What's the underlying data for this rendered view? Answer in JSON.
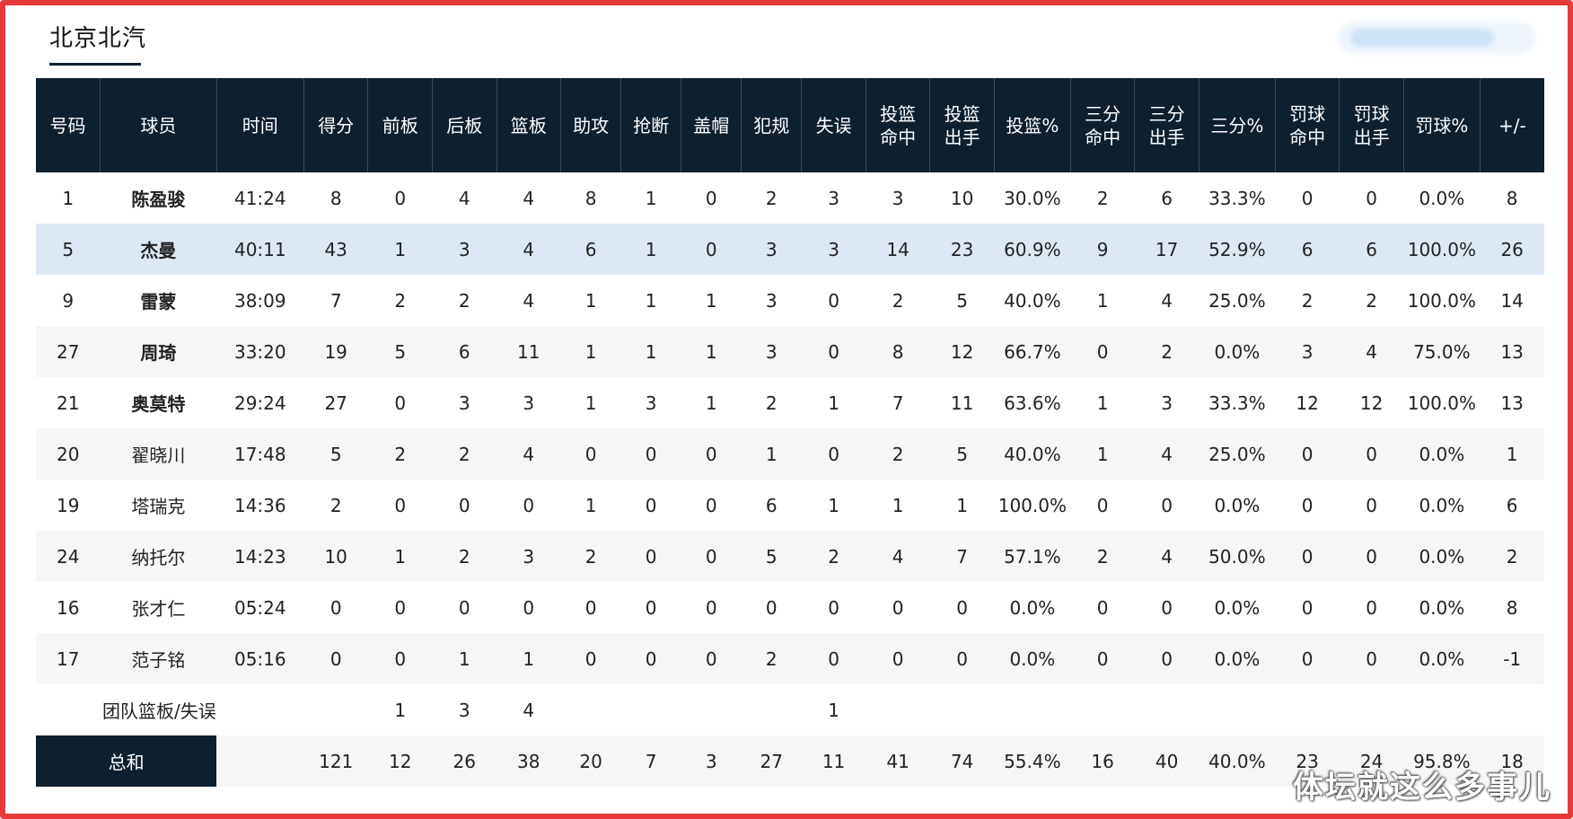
{
  "team_tab": "北京北汽",
  "columns": [
    "号码",
    "球员",
    "时间",
    "得分",
    "前板",
    "后板",
    "篮板",
    "助攻",
    "抢断",
    "盖帽",
    "犯规",
    "失误",
    "投篮\n命中",
    "投篮\n出手",
    "投篮%",
    "三分\n命中",
    "三分\n出手",
    "三分%",
    "罚球\n命中",
    "罚球\n出手",
    "罚球%",
    "+/-"
  ],
  "players": [
    {
      "cells": [
        "1",
        "陈盈骏",
        "41:24",
        "8",
        "0",
        "4",
        "4",
        "8",
        "1",
        "0",
        "2",
        "3",
        "3",
        "10",
        "30.0%",
        "2",
        "6",
        "33.3%",
        "0",
        "0",
        "0.0%",
        "8"
      ],
      "starter": true
    },
    {
      "cells": [
        "5",
        "杰曼",
        "40:11",
        "43",
        "1",
        "3",
        "4",
        "6",
        "1",
        "0",
        "3",
        "3",
        "14",
        "23",
        "60.9%",
        "9",
        "17",
        "52.9%",
        "6",
        "6",
        "100.0%",
        "26"
      ],
      "starter": true,
      "highlight": true
    },
    {
      "cells": [
        "9",
        "雷蒙",
        "38:09",
        "7",
        "2",
        "2",
        "4",
        "1",
        "1",
        "1",
        "3",
        "0",
        "2",
        "5",
        "40.0%",
        "1",
        "4",
        "25.0%",
        "2",
        "2",
        "100.0%",
        "14"
      ],
      "starter": true
    },
    {
      "cells": [
        "27",
        "周琦",
        "33:20",
        "19",
        "5",
        "6",
        "11",
        "1",
        "1",
        "1",
        "3",
        "0",
        "8",
        "12",
        "66.7%",
        "0",
        "2",
        "0.0%",
        "3",
        "4",
        "75.0%",
        "13"
      ],
      "starter": true
    },
    {
      "cells": [
        "21",
        "奥莫特",
        "29:24",
        "27",
        "0",
        "3",
        "3",
        "1",
        "3",
        "1",
        "2",
        "1",
        "7",
        "11",
        "63.6%",
        "1",
        "3",
        "33.3%",
        "12",
        "12",
        "100.0%",
        "13"
      ],
      "starter": true
    },
    {
      "cells": [
        "20",
        "翟晓川",
        "17:48",
        "5",
        "2",
        "2",
        "4",
        "0",
        "0",
        "0",
        "1",
        "0",
        "2",
        "5",
        "40.0%",
        "1",
        "4",
        "25.0%",
        "0",
        "0",
        "0.0%",
        "1"
      ],
      "starter": false
    },
    {
      "cells": [
        "19",
        "塔瑞克",
        "14:36",
        "2",
        "0",
        "0",
        "0",
        "1",
        "0",
        "0",
        "6",
        "1",
        "1",
        "1",
        "100.0%",
        "0",
        "0",
        "0.0%",
        "0",
        "0",
        "0.0%",
        "6"
      ],
      "starter": false
    },
    {
      "cells": [
        "24",
        "纳托尔",
        "14:23",
        "10",
        "1",
        "2",
        "3",
        "2",
        "0",
        "0",
        "5",
        "2",
        "4",
        "7",
        "57.1%",
        "2",
        "4",
        "50.0%",
        "0",
        "0",
        "0.0%",
        "2"
      ],
      "starter": false
    },
    {
      "cells": [
        "16",
        "张才仁",
        "05:24",
        "0",
        "0",
        "0",
        "0",
        "0",
        "0",
        "0",
        "0",
        "0",
        "0",
        "0",
        "0.0%",
        "0",
        "0",
        "0.0%",
        "0",
        "0",
        "0.0%",
        "8"
      ],
      "starter": false
    },
    {
      "cells": [
        "17",
        "范子铭",
        "05:16",
        "0",
        "0",
        "1",
        "1",
        "0",
        "0",
        "0",
        "2",
        "0",
        "0",
        "0",
        "0.0%",
        "0",
        "0",
        "0.0%",
        "0",
        "0",
        "0.0%",
        "-1"
      ],
      "starter": false
    }
  ],
  "team_row": {
    "label": "团队篮板/失误",
    "off_reb": "1",
    "def_reb": "3",
    "reb": "4",
    "to": "1"
  },
  "total_row": {
    "label": "总和",
    "cells": [
      "121",
      "12",
      "26",
      "38",
      "20",
      "7",
      "3",
      "27",
      "11",
      "41",
      "74",
      "55.4%",
      "16",
      "40",
      "40.0%",
      "23",
      "24",
      "95.8%",
      "18"
    ]
  },
  "watermark": "体坛就这么多事儿",
  "colors": {
    "header_bg": "#0e1f2e",
    "highlight_row": "#dce8f4",
    "border": "#e83a3a"
  }
}
